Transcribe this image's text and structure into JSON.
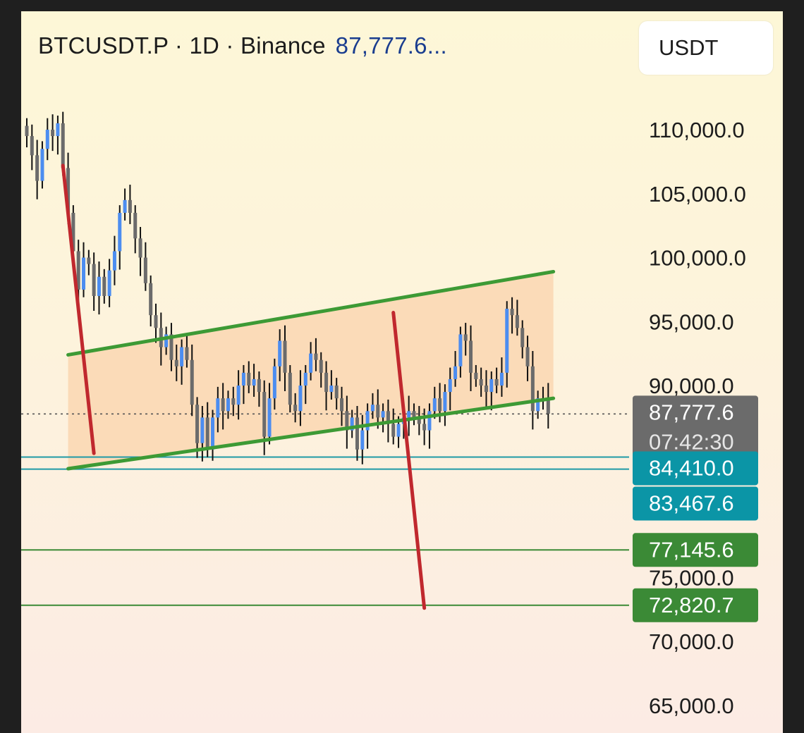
{
  "header": {
    "title": "BTCUSDT.P · 1D · Binance",
    "price": "87,777.6..."
  },
  "currency_button": {
    "label": "USDT"
  },
  "colors": {
    "bull": "#4c8df0",
    "bear": "#6b6b6b",
    "channel": "#3d9a35",
    "channel_fill": "#fbd8b4",
    "trend_red": "#c0282e",
    "support_teal": "#1f9aa6",
    "target_green": "#3b8a36",
    "label_gray": "#6b6b6b",
    "label_teal": "#0b95a6",
    "label_green": "#3b8a36"
  },
  "chart_data": {
    "type": "candlestick",
    "symbol": "BTCUSDT.P",
    "timeframe": "1D",
    "exchange": "Binance",
    "y_axis": {
      "ticks": [
        110000,
        105000,
        100000,
        95000,
        90000,
        75000,
        70000,
        65000
      ],
      "tick_labels": [
        "110,000.0",
        "105,000.0",
        "100,000.0",
        "95,000.0",
        "90,000.0",
        "75,000.0",
        "70,000.0",
        "65,000.0"
      ]
    },
    "ylim": [
      63500,
      119000
    ],
    "bar_count": 102,
    "current": {
      "price": 87777.6,
      "label": "87,777.6",
      "countdown": "07:42:30"
    },
    "closes": [
      109500,
      108000,
      106000,
      108500,
      110000,
      109500,
      110500,
      107000,
      103500,
      100500,
      97500,
      100000,
      99500,
      97000,
      98500,
      97000,
      99000,
      100500,
      103500,
      104500,
      103500,
      101500,
      100000,
      98000,
      95500,
      94500,
      93000,
      94000,
      92000,
      91500,
      93000,
      92000,
      88500,
      85500,
      87500,
      85000,
      87500,
      89000,
      88000,
      89000,
      88500,
      90000,
      91000,
      90000,
      90500,
      89500,
      86000,
      89000,
      91500,
      93500,
      91000,
      88500,
      88000,
      90000,
      91000,
      92500,
      92000,
      91000,
      89500,
      90000,
      89000,
      88000,
      86500,
      87500,
      85000,
      86500,
      88000,
      88500,
      87500,
      88000,
      87000,
      86000,
      87000,
      87500,
      88000,
      87500,
      87000,
      86500,
      88000,
      89000,
      88000,
      89500,
      90500,
      91500,
      94000,
      93500,
      91000,
      90500,
      90000,
      89500,
      90500,
      90000,
      91000,
      96000,
      95500,
      94500,
      93000,
      91500,
      88000,
      89000,
      89000,
      87800
    ],
    "lines": [
      {
        "name": "channel-upper",
        "kind": "channel",
        "from": [
          8,
          92400
        ],
        "to": [
          102,
          98900
        ]
      },
      {
        "name": "channel-lower",
        "kind": "channel",
        "from": [
          8,
          83500
        ],
        "to": [
          102,
          89000
        ]
      },
      {
        "name": "trend-1",
        "kind": "trend",
        "from": [
          7,
          107200
        ],
        "to": [
          13,
          84700
        ]
      },
      {
        "name": "trend-2",
        "kind": "trend",
        "from": [
          71,
          95700
        ],
        "to": [
          77,
          72600
        ]
      }
    ],
    "channel_zone": {
      "from_bar": 8,
      "to_bar": 102
    },
    "levels": [
      {
        "name": "support-84410",
        "value": 84410,
        "label": "84,410.0",
        "color": "teal"
      },
      {
        "name": "support-83467",
        "value": 83467.6,
        "label": "83,467.6",
        "color": "teal"
      },
      {
        "name": "target-77145",
        "value": 77145.6,
        "label": "77,145.6",
        "color": "green"
      },
      {
        "name": "target-72820",
        "value": 72820.7,
        "label": "72,820.7",
        "color": "green"
      }
    ]
  }
}
